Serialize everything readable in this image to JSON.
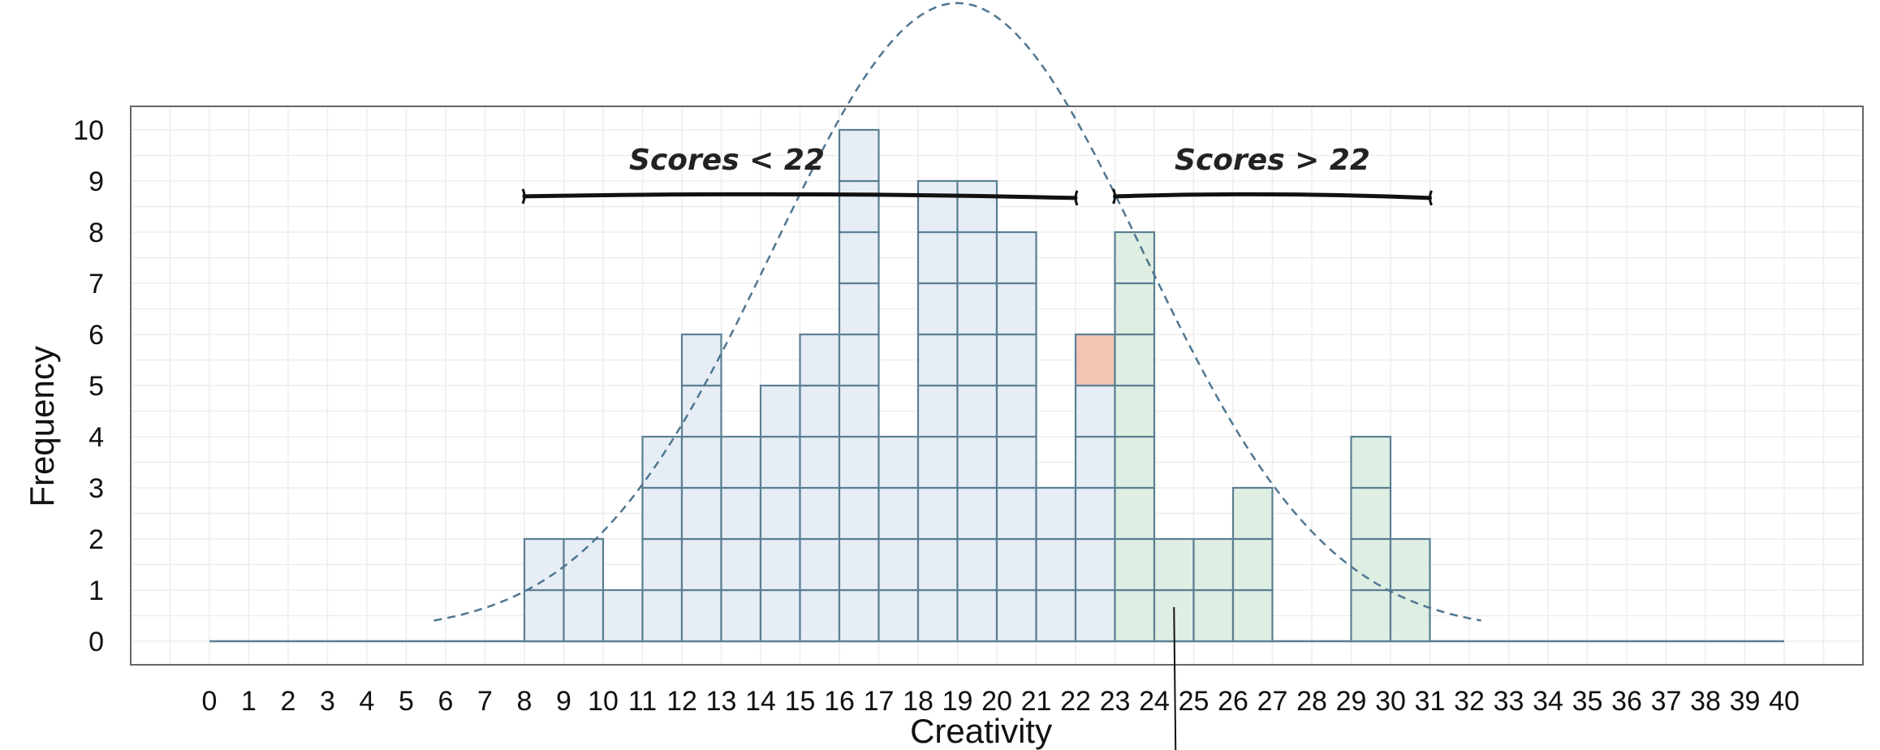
{
  "chart_data": {
    "type": "bar",
    "chart_style": "dot-histogram",
    "xlabel": "Creativity",
    "ylabel": "Frequency",
    "xlim": [
      0,
      40
    ],
    "ylim": [
      0,
      10
    ],
    "x_ticks": [
      "0",
      "1",
      "2",
      "3",
      "4",
      "5",
      "6",
      "7",
      "8",
      "9",
      "10",
      "11",
      "12",
      "13",
      "14",
      "15",
      "16",
      "17",
      "18",
      "19",
      "20",
      "21",
      "22",
      "23",
      "24",
      "25",
      "26",
      "27",
      "28",
      "29",
      "30",
      "31",
      "32",
      "33",
      "34",
      "35",
      "36",
      "37",
      "38",
      "39",
      "40"
    ],
    "y_ticks": [
      "0",
      "1",
      "2",
      "3",
      "4",
      "5",
      "6",
      "7",
      "8",
      "9",
      "10"
    ],
    "grid": true,
    "bars": [
      {
        "x": 8,
        "value": 2
      },
      {
        "x": 9,
        "value": 2
      },
      {
        "x": 10,
        "value": 1
      },
      {
        "x": 11,
        "value": 4
      },
      {
        "x": 12,
        "value": 6
      },
      {
        "x": 13,
        "value": 4
      },
      {
        "x": 14,
        "value": 5
      },
      {
        "x": 15,
        "value": 6
      },
      {
        "x": 16,
        "value": 10
      },
      {
        "x": 17,
        "value": 4
      },
      {
        "x": 18,
        "value": 9
      },
      {
        "x": 19,
        "value": 9
      },
      {
        "x": 20,
        "value": 8
      },
      {
        "x": 21,
        "value": 3
      },
      {
        "x": 22,
        "value": 6
      },
      {
        "x": 23,
        "value": 8
      },
      {
        "x": 24,
        "value": 2
      },
      {
        "x": 25,
        "value": 2
      },
      {
        "x": 26,
        "value": 3
      },
      {
        "x": 29,
        "value": 4
      },
      {
        "x": 30,
        "value": 2
      }
    ],
    "highlight_cell": {
      "x": 22,
      "level": 6
    },
    "normal_curve": {
      "mean": 19,
      "sd": 4.7,
      "peak": 12.3,
      "x_range": [
        5.7,
        32.3
      ]
    },
    "annotations": [
      {
        "text": "Scores < 22",
        "from": 8,
        "to": 22,
        "level": 8.7
      },
      {
        "text": "Scores > 22",
        "from": 23,
        "to": 31,
        "level": 8.7
      }
    ],
    "pointer_x": 24.5
  },
  "colors": {
    "bar_fill": "#e6edf5",
    "bar_fill_high": "#deeee2",
    "bar_stroke": "#5a7f92",
    "highlight_fill": "#f1c4b3",
    "curve": "#4f7690",
    "grid": "#eeeeee",
    "frame": "#666666",
    "baseline": "#5a7f92",
    "bracket": "#111111"
  }
}
